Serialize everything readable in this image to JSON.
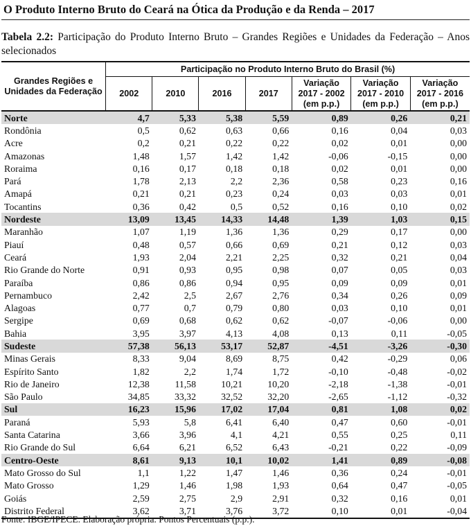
{
  "document": {
    "title": "O Produto Interno Bruto do Ceará na Ótica da Produção e da Renda – 2017",
    "table_label": "Tabela 2.2:",
    "table_caption": "Participação do Produto Interno Bruto – Grandes Regiões e Unidades da Federação – Anos selecionados",
    "source": "Fonte: IBGE/IPECE. Elaboração própria. Pontos Percentuais (p.p.)."
  },
  "table": {
    "header_region": "Grandes Regiões e Unidades da Federação",
    "header_group": "Participação no Produto Interno Bruto do Brasil (%)",
    "columns": [
      {
        "line1": "2002",
        "line2": "",
        "line3": ""
      },
      {
        "line1": "2010",
        "line2": "",
        "line3": ""
      },
      {
        "line1": "2016",
        "line2": "",
        "line3": ""
      },
      {
        "line1": "2017",
        "line2": "",
        "line3": ""
      },
      {
        "line1": "Variação",
        "line2": "2017 - 2002",
        "line3": "(em p.p.)"
      },
      {
        "line1": "Variação",
        "line2": "2017 - 2010",
        "line3": "(em p.p.)"
      },
      {
        "line1": "Variação",
        "line2": "2017 - 2016",
        "line3": "(em p.p.)"
      }
    ],
    "rows": [
      {
        "name": "Norte",
        "region": true,
        "values": [
          "4,7",
          "5,33",
          "5,38",
          "5,59",
          "0,89",
          "0,26",
          "0,21"
        ]
      },
      {
        "name": "Rondônia",
        "region": false,
        "values": [
          "0,5",
          "0,62",
          "0,63",
          "0,66",
          "0,16",
          "0,04",
          "0,03"
        ]
      },
      {
        "name": "Acre",
        "region": false,
        "values": [
          "0,2",
          "0,21",
          "0,22",
          "0,22",
          "0,02",
          "0,01",
          "0,00"
        ]
      },
      {
        "name": "Amazonas",
        "region": false,
        "values": [
          "1,48",
          "1,57",
          "1,42",
          "1,42",
          "-0,06",
          "-0,15",
          "0,00"
        ]
      },
      {
        "name": "Roraima",
        "region": false,
        "values": [
          "0,16",
          "0,17",
          "0,18",
          "0,18",
          "0,02",
          "0,01",
          "0,00"
        ]
      },
      {
        "name": "Pará",
        "region": false,
        "values": [
          "1,78",
          "2,13",
          "2,2",
          "2,36",
          "0,58",
          "0,23",
          "0,16"
        ]
      },
      {
        "name": "Amapá",
        "region": false,
        "values": [
          "0,21",
          "0,21",
          "0,23",
          "0,24",
          "0,03",
          "0,03",
          "0,01"
        ]
      },
      {
        "name": "Tocantins",
        "region": false,
        "values": [
          "0,36",
          "0,42",
          "0,5",
          "0,52",
          "0,16",
          "0,10",
          "0,02"
        ]
      },
      {
        "name": "Nordeste",
        "region": true,
        "values": [
          "13,09",
          "13,45",
          "14,33",
          "14,48",
          "1,39",
          "1,03",
          "0,15"
        ]
      },
      {
        "name": "Maranhão",
        "region": false,
        "values": [
          "1,07",
          "1,19",
          "1,36",
          "1,36",
          "0,29",
          "0,17",
          "0,00"
        ]
      },
      {
        "name": "Piauí",
        "region": false,
        "values": [
          "0,48",
          "0,57",
          "0,66",
          "0,69",
          "0,21",
          "0,12",
          "0,03"
        ]
      },
      {
        "name": "Ceará",
        "region": false,
        "values": [
          "1,93",
          "2,04",
          "2,21",
          "2,25",
          "0,32",
          "0,21",
          "0,04"
        ]
      },
      {
        "name": "Rio Grande do Norte",
        "region": false,
        "values": [
          "0,91",
          "0,93",
          "0,95",
          "0,98",
          "0,07",
          "0,05",
          "0,03"
        ]
      },
      {
        "name": "Paraíba",
        "region": false,
        "values": [
          "0,86",
          "0,86",
          "0,94",
          "0,95",
          "0,09",
          "0,09",
          "0,01"
        ]
      },
      {
        "name": "Pernambuco",
        "region": false,
        "values": [
          "2,42",
          "2,5",
          "2,67",
          "2,76",
          "0,34",
          "0,26",
          "0,09"
        ]
      },
      {
        "name": "Alagoas",
        "region": false,
        "values": [
          "0,77",
          "0,7",
          "0,79",
          "0,80",
          "0,03",
          "0,10",
          "0,01"
        ]
      },
      {
        "name": "Sergipe",
        "region": false,
        "values": [
          "0,69",
          "0,68",
          "0,62",
          "0,62",
          "-0,07",
          "-0,06",
          "0,00"
        ]
      },
      {
        "name": "Bahia",
        "region": false,
        "values": [
          "3,95",
          "3,97",
          "4,13",
          "4,08",
          "0,13",
          "0,11",
          "-0,05"
        ]
      },
      {
        "name": "Sudeste",
        "region": true,
        "values": [
          "57,38",
          "56,13",
          "53,17",
          "52,87",
          "-4,51",
          "-3,26",
          "-0,30"
        ]
      },
      {
        "name": "Minas Gerais",
        "region": false,
        "values": [
          "8,33",
          "9,04",
          "8,69",
          "8,75",
          "0,42",
          "-0,29",
          "0,06"
        ]
      },
      {
        "name": "Espírito Santo",
        "region": false,
        "values": [
          "1,82",
          "2,2",
          "1,74",
          "1,72",
          "-0,10",
          "-0,48",
          "-0,02"
        ]
      },
      {
        "name": "Rio de Janeiro",
        "region": false,
        "values": [
          "12,38",
          "11,58",
          "10,21",
          "10,20",
          "-2,18",
          "-1,38",
          "-0,01"
        ]
      },
      {
        "name": "São Paulo",
        "region": false,
        "values": [
          "34,85",
          "33,32",
          "32,52",
          "32,20",
          "-2,65",
          "-1,12",
          "-0,32"
        ]
      },
      {
        "name": "Sul",
        "region": true,
        "values": [
          "16,23",
          "15,96",
          "17,02",
          "17,04",
          "0,81",
          "1,08",
          "0,02"
        ]
      },
      {
        "name": "Paraná",
        "region": false,
        "values": [
          "5,93",
          "5,8",
          "6,41",
          "6,40",
          "0,47",
          "0,60",
          "-0,01"
        ]
      },
      {
        "name": "Santa Catarina",
        "region": false,
        "values": [
          "3,66",
          "3,96",
          "4,1",
          "4,21",
          "0,55",
          "0,25",
          "0,11"
        ]
      },
      {
        "name": "Rio Grande do Sul",
        "region": false,
        "values": [
          "6,64",
          "6,21",
          "6,52",
          "6,43",
          "-0,21",
          "0,22",
          "-0,09"
        ]
      },
      {
        "name": "Centro-Oeste",
        "region": true,
        "values": [
          "8,61",
          "9,13",
          "10,1",
          "10,02",
          "1,41",
          "0,89",
          "-0,08"
        ]
      },
      {
        "name": "Mato Grosso do Sul",
        "region": false,
        "values": [
          "1,1",
          "1,22",
          "1,47",
          "1,46",
          "0,36",
          "0,24",
          "-0,01"
        ]
      },
      {
        "name": "Mato Grosso",
        "region": false,
        "values": [
          "1,29",
          "1,46",
          "1,98",
          "1,93",
          "0,64",
          "0,47",
          "-0,05"
        ]
      },
      {
        "name": "Goiás",
        "region": false,
        "values": [
          "2,59",
          "2,75",
          "2,9",
          "2,91",
          "0,32",
          "0,16",
          "0,01"
        ]
      },
      {
        "name": "Distrito Federal",
        "region": false,
        "values": [
          "3,62",
          "3,71",
          "3,76",
          "3,72",
          "0,10",
          "0,01",
          "-0,04"
        ]
      }
    ]
  }
}
